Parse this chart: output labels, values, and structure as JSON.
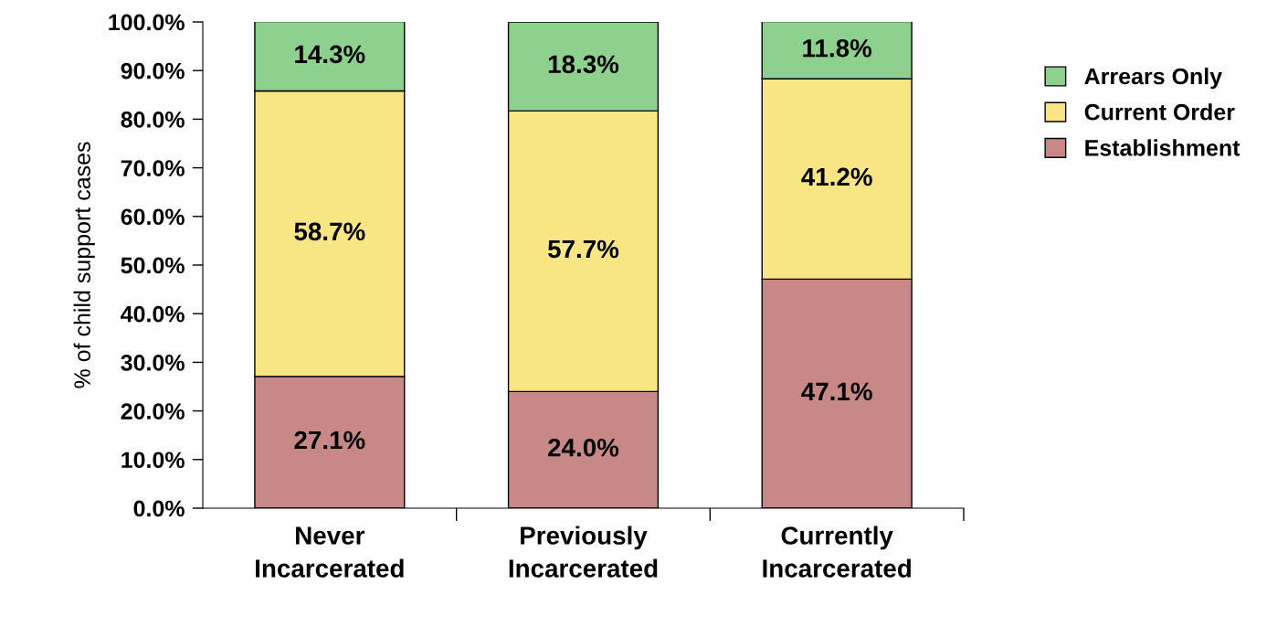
{
  "chart_data": {
    "type": "bar",
    "stacked": true,
    "ylabel": "% of child support cases",
    "categories": [
      "Never\nIncarcerated",
      "Previously\nIncarcerated",
      "Currently\nIncarcerated"
    ],
    "series": [
      {
        "name": "Establishment",
        "color": "#c98888",
        "values": [
          27.1,
          24.0,
          47.1
        ],
        "value_labels": [
          "27.1%",
          "24.0%",
          "47.1%"
        ]
      },
      {
        "name": "Current Order",
        "color": "#f8e583",
        "values": [
          58.7,
          57.7,
          41.2
        ],
        "value_labels": [
          "58.7%",
          "57.7%",
          "41.2%"
        ]
      },
      {
        "name": "Arrears Only",
        "color": "#8ed08e",
        "values": [
          14.3,
          18.3,
          11.8
        ],
        "value_labels": [
          "14.3%",
          "18.3%",
          "11.8%"
        ]
      }
    ],
    "ylim": [
      0,
      100
    ],
    "yticks": [
      {
        "value": 0,
        "label": "0.0%"
      },
      {
        "value": 10,
        "label": "10.0%"
      },
      {
        "value": 20,
        "label": "20.0%"
      },
      {
        "value": 30,
        "label": "30.0%"
      },
      {
        "value": 40,
        "label": "40.0%"
      },
      {
        "value": 50,
        "label": "50.0%"
      },
      {
        "value": 60,
        "label": "60.0%"
      },
      {
        "value": 70,
        "label": "70.0%"
      },
      {
        "value": 80,
        "label": "80.0%"
      },
      {
        "value": 90,
        "label": "90.0%"
      },
      {
        "value": 100,
        "label": "100.0%"
      }
    ],
    "grid": false,
    "legend": "top right"
  }
}
